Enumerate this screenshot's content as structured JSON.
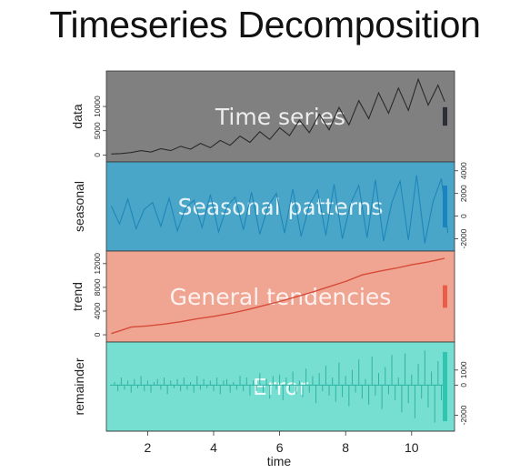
{
  "title": "Timeseries Decomposition",
  "chart_data": {
    "type": "line",
    "xlabel": "time",
    "xlim": [
      0.75,
      11.3
    ],
    "xticks": [
      2,
      4,
      6,
      8,
      10
    ],
    "panels": [
      {
        "id": "data",
        "ylabel": "data",
        "overlay": "Time series",
        "bg": "#808080",
        "line_color": "#2b2b2b",
        "bar_color": "#2b2f38",
        "tick_side": "left",
        "ylim": [
          -300,
          16200
        ],
        "yticks": [
          0,
          5000,
          10000
        ],
        "x": [
          0.9,
          1.2,
          1.5,
          1.8,
          2.1,
          2.4,
          2.7,
          3.0,
          3.3,
          3.6,
          3.9,
          4.2,
          4.5,
          4.8,
          5.1,
          5.4,
          5.7,
          6.0,
          6.3,
          6.6,
          6.9,
          7.2,
          7.5,
          7.8,
          8.1,
          8.4,
          8.7,
          9.0,
          9.3,
          9.6,
          9.9,
          10.2,
          10.5,
          10.8,
          11.0
        ],
        "y": [
          200,
          300,
          500,
          900,
          600,
          1300,
          900,
          1800,
          1200,
          2400,
          1500,
          3000,
          2000,
          3900,
          2600,
          4800,
          3200,
          5600,
          4000,
          7200,
          4600,
          8400,
          5200,
          9800,
          6200,
          11200,
          7500,
          12800,
          8600,
          13800,
          9200,
          15600,
          10300,
          14400,
          11000
        ],
        "bar_height": 3800
      },
      {
        "id": "seasonal",
        "ylabel": "seasonal",
        "overlay": "Seasonal patterns",
        "bg": "#4aa6c8",
        "line_color": "#1f86b8",
        "bar_color": "#1b84c0",
        "tick_side": "right",
        "ylim": [
          -2600,
          4300
        ],
        "yticks": [
          -2000,
          0,
          2000,
          4000
        ],
        "x": [
          0.9,
          1.15,
          1.4,
          1.65,
          1.9,
          2.15,
          2.4,
          2.65,
          2.9,
          3.15,
          3.4,
          3.65,
          3.9,
          4.15,
          4.4,
          4.65,
          4.9,
          5.15,
          5.4,
          5.65,
          5.9,
          6.15,
          6.4,
          6.65,
          6.9,
          7.15,
          7.4,
          7.65,
          7.9,
          8.15,
          8.4,
          8.65,
          8.9,
          9.15,
          9.4,
          9.65,
          9.9,
          10.15,
          10.4,
          10.65,
          10.9,
          11.1
        ],
        "y": [
          900,
          -700,
          1500,
          -1100,
          600,
          1200,
          -900,
          1600,
          -1300,
          700,
          1400,
          -1000,
          1900,
          -1400,
          800,
          1700,
          -1200,
          2100,
          -1600,
          900,
          2000,
          -1500,
          2400,
          -1800,
          1000,
          2300,
          -1700,
          2800,
          -2000,
          1100,
          2700,
          -1900,
          3200,
          -2200,
          1200,
          3100,
          -2100,
          3600,
          -2400,
          1300,
          3300,
          -1500
        ],
        "bar_height": 3700
      },
      {
        "id": "trend",
        "ylabel": "trend",
        "overlay": "General tendencies",
        "bg": "#f0a593",
        "line_color": "#d64a38",
        "bar_color": "#e85c48",
        "tick_side": "left",
        "ylim": [
          -300,
          13200
        ],
        "yticks": [
          0,
          4000,
          8000,
          12000
        ],
        "x": [
          0.9,
          1.5,
          2.0,
          2.5,
          3.0,
          3.5,
          4.0,
          4.5,
          5.0,
          5.5,
          6.0,
          6.5,
          7.0,
          7.5,
          8.0,
          8.5,
          9.0,
          9.5,
          10.0,
          10.5,
          11.0
        ],
        "y": [
          200,
          1300,
          1500,
          1800,
          2200,
          2700,
          3100,
          3600,
          4200,
          4900,
          5600,
          6400,
          7200,
          8100,
          9000,
          10100,
          10700,
          11200,
          11800,
          12300,
          12900
        ],
        "bar_height": 3800
      },
      {
        "id": "remainder",
        "ylabel": "remainder",
        "overlay": "Error",
        "bg": "#76dfd1",
        "line_color": "#2fb3a2",
        "bar_color": "#2fc5b0",
        "tick_side": "right",
        "ylim": [
          -2700,
          2500
        ],
        "yticks": [
          -2000,
          0,
          1000
        ],
        "x": [
          1.0,
          1.1,
          1.2,
          1.3,
          1.4,
          1.5,
          1.6,
          1.7,
          1.8,
          1.9,
          2.0,
          2.1,
          2.2,
          2.3,
          2.4,
          2.5,
          2.6,
          2.7,
          2.8,
          2.9,
          3.0,
          3.1,
          3.2,
          3.3,
          3.4,
          3.5,
          3.6,
          3.7,
          3.8,
          3.9,
          4.0,
          4.1,
          4.2,
          4.3,
          4.4,
          4.5,
          4.6,
          4.7,
          4.8,
          4.9,
          5.0,
          5.1,
          5.2,
          5.3,
          5.4,
          5.5,
          5.6,
          5.7,
          5.8,
          5.9,
          6.0,
          6.1,
          6.2,
          6.3,
          6.4,
          6.5,
          6.6,
          6.7,
          6.8,
          6.9,
          7.0,
          7.1,
          7.2,
          7.3,
          7.4,
          7.5,
          7.6,
          7.7,
          7.8,
          7.9,
          8.0,
          8.1,
          8.2,
          8.3,
          8.4,
          8.5,
          8.6,
          8.7,
          8.8,
          8.9,
          9.0,
          9.1,
          9.2,
          9.3,
          9.4,
          9.5,
          9.6,
          9.7,
          9.8,
          9.9,
          10.0,
          10.1,
          10.2,
          10.3,
          10.4,
          10.5,
          10.6,
          10.7,
          10.8,
          10.9,
          11.0
        ],
        "y": [
          200,
          -400,
          500,
          -300,
          300,
          -500,
          400,
          -200,
          600,
          -400,
          300,
          -500,
          200,
          400,
          -300,
          500,
          -600,
          300,
          -200,
          400,
          -400,
          500,
          -300,
          200,
          -500,
          600,
          -300,
          400,
          -200,
          300,
          -400,
          500,
          -600,
          300,
          400,
          -500,
          200,
          -300,
          600,
          -400,
          500,
          -700,
          300,
          -400,
          800,
          -500,
          400,
          -900,
          600,
          -300,
          700,
          -1000,
          500,
          -400,
          900,
          -600,
          300,
          -800,
          1100,
          -500,
          600,
          -1200,
          800,
          -400,
          1300,
          -700,
          500,
          -1100,
          1500,
          -800,
          600,
          -1400,
          1000,
          -500,
          1700,
          -900,
          400,
          -1300,
          1900,
          -700,
          800,
          -1600,
          1200,
          -600,
          2000,
          -1000,
          500,
          -1800,
          2100,
          -1200,
          700,
          -2200,
          1400,
          -900,
          2300,
          -1500,
          900,
          -2500,
          1600,
          -1000,
          800
        ],
        "bar_height": 4600
      }
    ]
  }
}
